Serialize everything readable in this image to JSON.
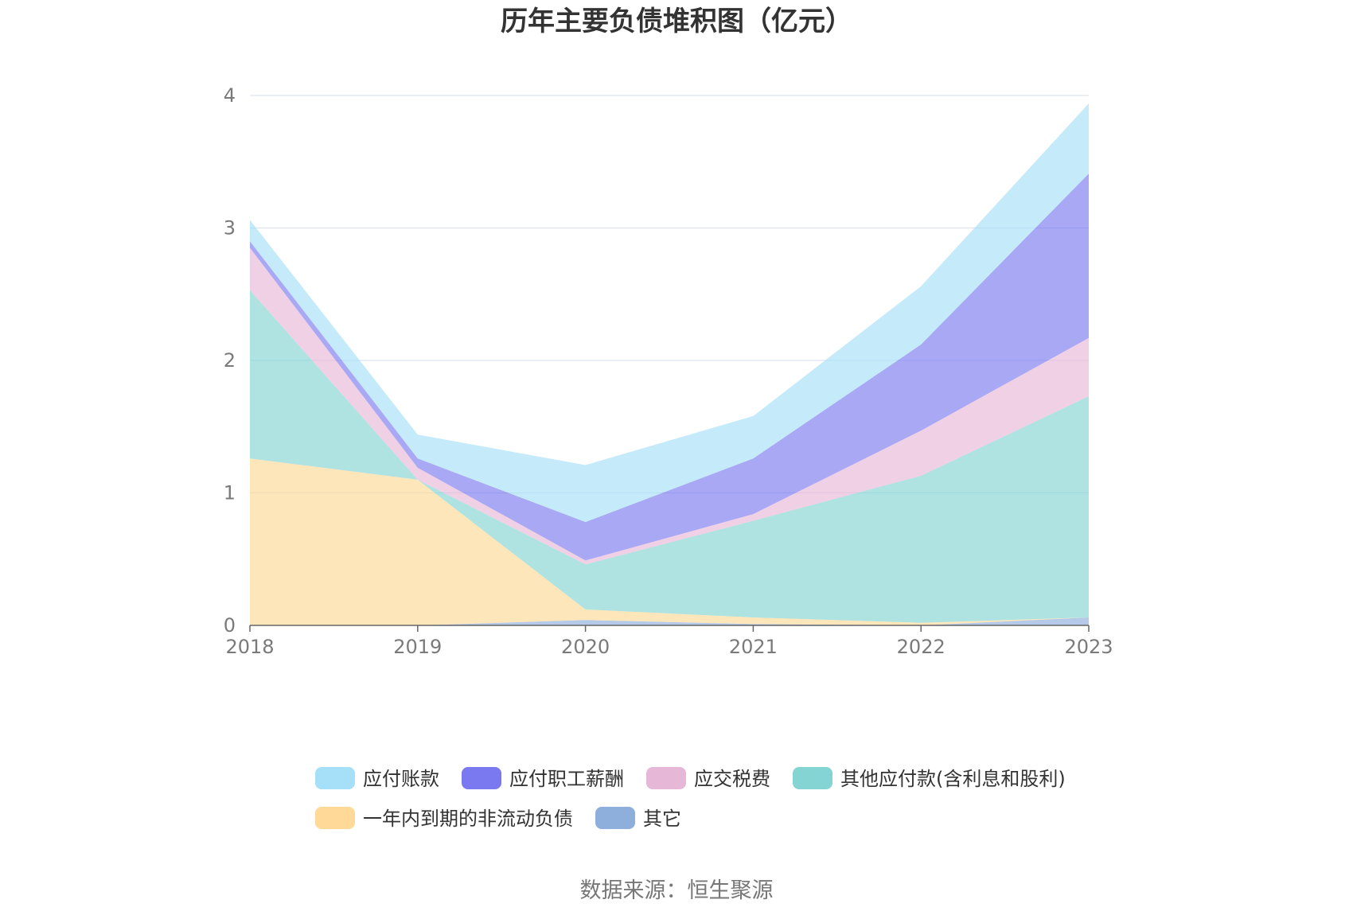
{
  "chart_data": {
    "type": "area",
    "stacked": true,
    "title": "历年主要负债堆积图（亿元）",
    "source": "数据来源：恒生聚源",
    "x": [
      "2018",
      "2019",
      "2020",
      "2021",
      "2022",
      "2023"
    ],
    "y_ticks": [
      "0",
      "1",
      "2",
      "3",
      "4"
    ],
    "ylim": [
      0,
      4
    ],
    "grid": true,
    "legend_position": "bottom",
    "series": [
      {
        "name": "其它",
        "color": "#8eaedb",
        "values": [
          0.0,
          0.0,
          0.04,
          0.01,
          0.0,
          0.06
        ]
      },
      {
        "name": "一年内到期的非流动负债",
        "color": "#fed997",
        "values": [
          1.26,
          1.1,
          0.08,
          0.05,
          0.02,
          0.0
        ]
      },
      {
        "name": "其他应付款(含利息和股利)",
        "color": "#83d4d3",
        "values": [
          1.27,
          0.0,
          0.34,
          0.73,
          1.11,
          1.67
        ]
      },
      {
        "name": "应交税费",
        "color": "#e6b7d7",
        "values": [
          0.32,
          0.09,
          0.03,
          0.05,
          0.34,
          0.44
        ]
      },
      {
        "name": "应付职工薪酬",
        "color": "#7a79ef",
        "values": [
          0.05,
          0.07,
          0.29,
          0.42,
          0.65,
          1.24
        ]
      },
      {
        "name": "应付账款",
        "color": "#a6dff8",
        "values": [
          0.16,
          0.18,
          0.43,
          0.32,
          0.44,
          0.53
        ]
      }
    ],
    "legend_order": [
      "应付账款",
      "应付职工薪酬",
      "应交税费",
      "其他应付款(含利息和股利)",
      "一年内到期的非流动负债",
      "其它"
    ]
  }
}
